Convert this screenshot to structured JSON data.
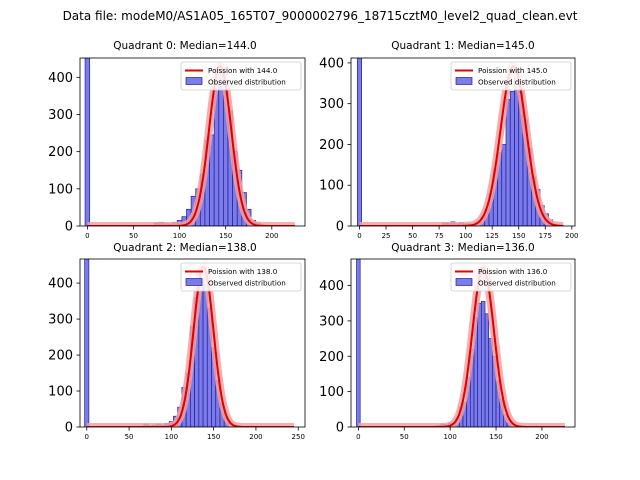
{
  "figure": {
    "title": "Data file: modeM0/AS1A05_165T07_9000002796_18715cztM0_level2_quad_clean.evt"
  },
  "chart_data": [
    {
      "type": "bar",
      "title": "Quadrant 0: Median=144.0",
      "median": 144.0,
      "xlim": [
        -8,
        236
      ],
      "ylim": [
        0,
        452
      ],
      "xticks": [
        0,
        50,
        100,
        150,
        200
      ],
      "yticks": [
        0,
        100,
        200,
        300,
        400
      ],
      "bin_width": 5,
      "bins": [
        {
          "x": 0,
          "y": 452
        },
        {
          "x": 75,
          "y": 8
        },
        {
          "x": 80,
          "y": 10
        },
        {
          "x": 85,
          "y": 6
        },
        {
          "x": 90,
          "y": 5
        },
        {
          "x": 95,
          "y": 10
        },
        {
          "x": 100,
          "y": 15
        },
        {
          "x": 105,
          "y": 25
        },
        {
          "x": 110,
          "y": 45
        },
        {
          "x": 115,
          "y": 80
        },
        {
          "x": 120,
          "y": 100
        },
        {
          "x": 125,
          "y": 140
        },
        {
          "x": 130,
          "y": 230
        },
        {
          "x": 135,
          "y": 245
        },
        {
          "x": 140,
          "y": 380
        },
        {
          "x": 145,
          "y": 420
        },
        {
          "x": 150,
          "y": 390
        },
        {
          "x": 155,
          "y": 310
        },
        {
          "x": 160,
          "y": 200
        },
        {
          "x": 165,
          "y": 150
        },
        {
          "x": 170,
          "y": 90
        },
        {
          "x": 175,
          "y": 45
        },
        {
          "x": 180,
          "y": 15
        },
        {
          "x": 185,
          "y": 8
        },
        {
          "x": 190,
          "y": 3
        },
        {
          "x": 195,
          "y": 2
        }
      ],
      "fit": {
        "mu": 144.0,
        "peak": 430,
        "xmin": 0,
        "xmax": 225
      },
      "legend": {
        "fit_label": "Poission with 144.0",
        "hist_label": "Observed distribution"
      }
    },
    {
      "type": "bar",
      "title": "Quadrant 1: Median=145.0",
      "median": 145.0,
      "xlim": [
        -8,
        203
      ],
      "ylim": [
        0,
        412
      ],
      "xticks": [
        0,
        25,
        50,
        75,
        100,
        125,
        150,
        175,
        200
      ],
      "yticks": [
        0,
        100,
        200,
        300,
        400
      ],
      "bin_width": 4,
      "bins": [
        {
          "x": 0,
          "y": 412
        },
        {
          "x": 80,
          "y": 8
        },
        {
          "x": 84,
          "y": 6
        },
        {
          "x": 88,
          "y": 10
        },
        {
          "x": 92,
          "y": 5
        },
        {
          "x": 96,
          "y": 8
        },
        {
          "x": 100,
          "y": 5
        },
        {
          "x": 104,
          "y": 5
        },
        {
          "x": 108,
          "y": 5
        },
        {
          "x": 112,
          "y": 10
        },
        {
          "x": 116,
          "y": 20
        },
        {
          "x": 120,
          "y": 40
        },
        {
          "x": 124,
          "y": 80
        },
        {
          "x": 128,
          "y": 140
        },
        {
          "x": 132,
          "y": 180
        },
        {
          "x": 136,
          "y": 200
        },
        {
          "x": 140,
          "y": 310
        },
        {
          "x": 144,
          "y": 330
        },
        {
          "x": 148,
          "y": 380
        },
        {
          "x": 152,
          "y": 330
        },
        {
          "x": 156,
          "y": 260
        },
        {
          "x": 160,
          "y": 190
        },
        {
          "x": 164,
          "y": 120
        },
        {
          "x": 168,
          "y": 90
        },
        {
          "x": 172,
          "y": 50
        },
        {
          "x": 176,
          "y": 30
        },
        {
          "x": 180,
          "y": 15
        },
        {
          "x": 184,
          "y": 5
        },
        {
          "x": 188,
          "y": 2
        }
      ],
      "fit": {
        "mu": 145.0,
        "peak": 392,
        "xmin": 0,
        "xmax": 192
      },
      "legend": {
        "fit_label": "Poission with 145.0",
        "hist_label": "Observed distribution"
      }
    },
    {
      "type": "bar",
      "title": "Quadrant 2: Median=138.0",
      "median": 138.0,
      "xlim": [
        -8,
        258
      ],
      "ylim": [
        0,
        467
      ],
      "xticks": [
        0,
        50,
        100,
        150,
        200,
        250
      ],
      "yticks": [
        0,
        100,
        200,
        300,
        400
      ],
      "bin_width": 5,
      "bins": [
        {
          "x": 0,
          "y": 467
        },
        {
          "x": 70,
          "y": 8
        },
        {
          "x": 75,
          "y": 3
        },
        {
          "x": 80,
          "y": 5
        },
        {
          "x": 85,
          "y": 8
        },
        {
          "x": 90,
          "y": 5
        },
        {
          "x": 95,
          "y": 10
        },
        {
          "x": 100,
          "y": 15
        },
        {
          "x": 105,
          "y": 30
        },
        {
          "x": 110,
          "y": 55
        },
        {
          "x": 115,
          "y": 110
        },
        {
          "x": 120,
          "y": 150
        },
        {
          "x": 125,
          "y": 280
        },
        {
          "x": 130,
          "y": 360
        },
        {
          "x": 135,
          "y": 400
        },
        {
          "x": 140,
          "y": 410
        },
        {
          "x": 145,
          "y": 330
        },
        {
          "x": 150,
          "y": 220
        },
        {
          "x": 155,
          "y": 130
        },
        {
          "x": 160,
          "y": 65
        },
        {
          "x": 165,
          "y": 25
        },
        {
          "x": 170,
          "y": 10
        },
        {
          "x": 175,
          "y": 3
        }
      ],
      "fit": {
        "mu": 138.0,
        "peak": 445,
        "xmin": 0,
        "xmax": 245
      },
      "legend": {
        "fit_label": "Poission with 138.0",
        "hist_label": "Observed distribution"
      }
    },
    {
      "type": "bar",
      "title": "Quadrant 3: Median=136.0",
      "median": 136.0,
      "xlim": [
        -8,
        236
      ],
      "ylim": [
        0,
        475
      ],
      "xticks": [
        0,
        50,
        100,
        150,
        200
      ],
      "yticks": [
        0,
        100,
        200,
        300,
        400
      ],
      "bin_width": 4,
      "bins": [
        {
          "x": 0,
          "y": 475
        },
        {
          "x": 84,
          "y": 3
        },
        {
          "x": 88,
          "y": 5
        },
        {
          "x": 92,
          "y": 8
        },
        {
          "x": 96,
          "y": 6
        },
        {
          "x": 100,
          "y": 10
        },
        {
          "x": 104,
          "y": 10
        },
        {
          "x": 108,
          "y": 25
        },
        {
          "x": 112,
          "y": 55
        },
        {
          "x": 116,
          "y": 70
        },
        {
          "x": 120,
          "y": 140
        },
        {
          "x": 124,
          "y": 220
        },
        {
          "x": 128,
          "y": 310
        },
        {
          "x": 132,
          "y": 350
        },
        {
          "x": 136,
          "y": 355
        },
        {
          "x": 140,
          "y": 320
        },
        {
          "x": 144,
          "y": 250
        },
        {
          "x": 148,
          "y": 200
        },
        {
          "x": 152,
          "y": 130
        },
        {
          "x": 156,
          "y": 80
        },
        {
          "x": 160,
          "y": 35
        },
        {
          "x": 164,
          "y": 20
        },
        {
          "x": 168,
          "y": 8
        },
        {
          "x": 172,
          "y": 3
        }
      ],
      "fit": {
        "mu": 136.0,
        "peak": 450,
        "xmin": 0,
        "xmax": 225
      },
      "legend": {
        "fit_label": "Poission with 136.0",
        "hist_label": "Observed distribution"
      }
    }
  ],
  "colors": {
    "bar_fill": "#7b7bea",
    "bar_edge": "#20209a",
    "fit_line": "#e00000",
    "fit_band": "#f4a0a0",
    "axis": "#000000"
  }
}
